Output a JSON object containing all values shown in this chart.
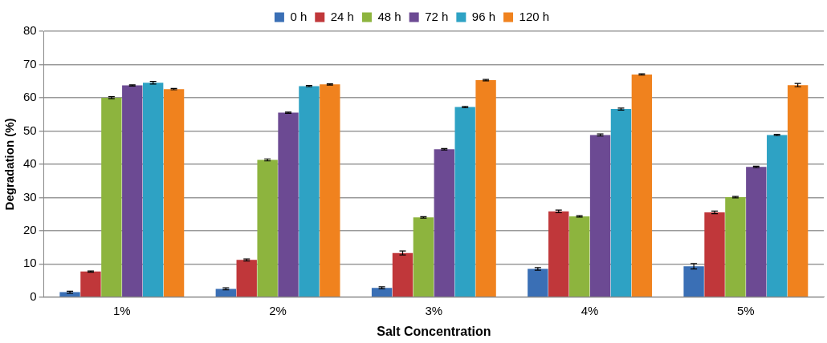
{
  "chart_data": {
    "type": "bar",
    "xlabel": "Salt Concentration",
    "ylabel": "Degradation (%)",
    "categories": [
      "1%",
      "2%",
      "3%",
      "4%",
      "5%"
    ],
    "series": [
      {
        "name": "0 h",
        "color": "#3a6fb5",
        "values": [
          1.5,
          2.5,
          2.8,
          8.5,
          9.3
        ],
        "errors": [
          0.3,
          0.3,
          0.3,
          0.4,
          0.8
        ]
      },
      {
        "name": "24 h",
        "color": "#c0373a",
        "values": [
          7.7,
          11.2,
          13.3,
          25.8,
          25.5
        ],
        "errors": [
          0.2,
          0.3,
          0.6,
          0.4,
          0.4
        ]
      },
      {
        "name": "48 h",
        "color": "#8db43e",
        "values": [
          60,
          41.3,
          24,
          24.3,
          30.1
        ],
        "errors": [
          0.3,
          0.3,
          0.2,
          0.2,
          0.2
        ]
      },
      {
        "name": "72 h",
        "color": "#6c4a93",
        "values": [
          63.7,
          55.5,
          44.5,
          48.8,
          39.2
        ],
        "errors": [
          0.2,
          0.2,
          0.2,
          0.3,
          0.2
        ]
      },
      {
        "name": "96 h",
        "color": "#2ea2c4",
        "values": [
          64.5,
          63.5,
          57.2,
          56.6,
          48.8
        ],
        "errors": [
          0.4,
          0.2,
          0.2,
          0.3,
          0.2
        ]
      },
      {
        "name": "120 h",
        "color": "#f0821e",
        "values": [
          62.6,
          64,
          65.3,
          67,
          63.8
        ],
        "errors": [
          0.2,
          0.2,
          0.2,
          0.2,
          0.5
        ]
      }
    ],
    "ylim": [
      0,
      80
    ],
    "yticks": [
      0,
      10,
      20,
      30,
      40,
      50,
      60,
      70,
      80
    ],
    "grid": "y",
    "legend": "top"
  }
}
